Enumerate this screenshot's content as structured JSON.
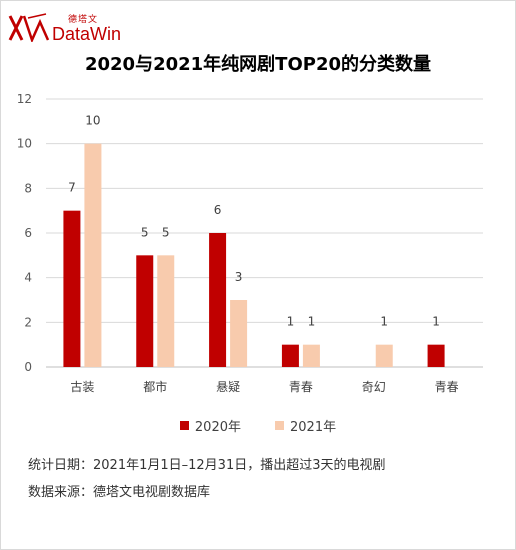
{
  "brand": {
    "name_cn": "德塔文",
    "name_en": "DataWin",
    "color": "#c00000"
  },
  "chart_data": {
    "type": "bar",
    "title": "2020与2021年纯网剧TOP20的分类数量",
    "categories": [
      "古装",
      "都市",
      "悬疑",
      "青春",
      "奇幻",
      "青春"
    ],
    "series": [
      {
        "name": "2020年",
        "color": "#c00000",
        "values": [
          7,
          5,
          6,
          1,
          null,
          1
        ]
      },
      {
        "name": "2021年",
        "color": "#f8cbad",
        "values": [
          10,
          5,
          3,
          1,
          1,
          null
        ]
      }
    ],
    "ylim": [
      0,
      12
    ],
    "yticks": [
      "0",
      "2",
      "4",
      "6",
      "8",
      "10",
      "12"
    ],
    "grid": true,
    "legend_position": "bottom"
  },
  "notes": {
    "period": "统计日期：2021年1月1日–12月31日，播出超过3天的电视剧",
    "source": "数据来源：德塔文电视剧数据库"
  }
}
